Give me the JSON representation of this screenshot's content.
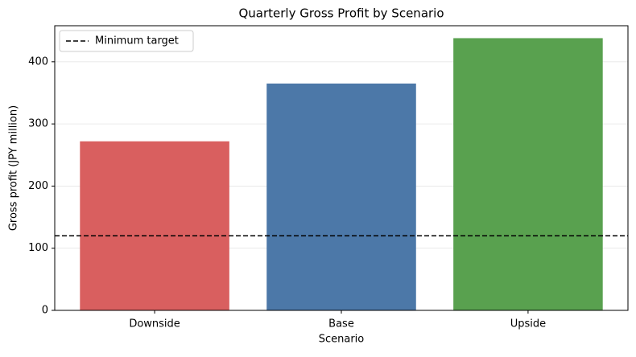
{
  "chart_data": {
    "type": "bar",
    "title": "Quarterly Gross Profit by Scenario",
    "x_label": "Scenario",
    "y_label": "Gross profit (JPY million)",
    "categories": [
      "Downside",
      "Base",
      "Upside"
    ],
    "values": [
      272,
      365,
      438
    ],
    "colors": [
      "#d95f5f",
      "#4c78a8",
      "#59a14f"
    ],
    "ylim": [
      0,
      458
    ],
    "yticks": [
      0,
      100,
      200,
      300,
      400
    ],
    "grid": true,
    "reference_line": {
      "value": 120,
      "label": "Minimum target",
      "color": "#000000",
      "style": "dashed"
    },
    "legend_position": "upper left"
  }
}
